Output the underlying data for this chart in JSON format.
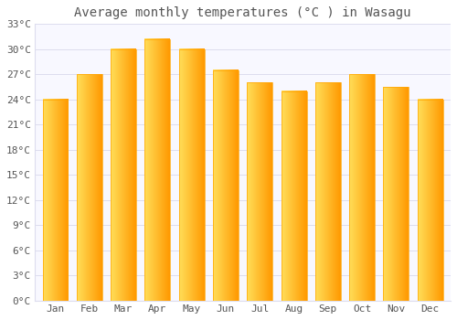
{
  "title": "Average monthly temperatures (°C ) in Wasagu",
  "months": [
    "Jan",
    "Feb",
    "Mar",
    "Apr",
    "May",
    "Jun",
    "Jul",
    "Aug",
    "Sep",
    "Oct",
    "Nov",
    "Dec"
  ],
  "values": [
    24.0,
    27.0,
    30.0,
    31.2,
    30.0,
    27.5,
    26.0,
    25.0,
    26.0,
    27.0,
    25.5,
    24.0
  ],
  "bar_color_left": "#FFD966",
  "bar_color_right": "#FFA500",
  "background_color": "#FFFFFF",
  "plot_bg_color": "#F8F8FF",
  "grid_color": "#DDDDEE",
  "text_color": "#555555",
  "ylim": [
    0,
    33
  ],
  "yticks": [
    0,
    3,
    6,
    9,
    12,
    15,
    18,
    21,
    24,
    27,
    30,
    33
  ],
  "ytick_labels": [
    "0°C",
    "3°C",
    "6°C",
    "9°C",
    "12°C",
    "15°C",
    "18°C",
    "21°C",
    "24°C",
    "27°C",
    "30°C",
    "33°C"
  ],
  "title_fontsize": 10,
  "tick_fontsize": 8,
  "font_family": "monospace",
  "bar_width": 0.75
}
